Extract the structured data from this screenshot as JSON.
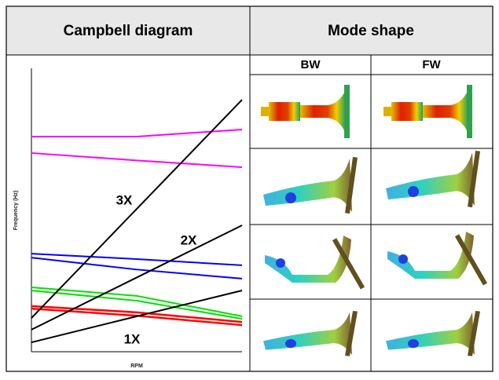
{
  "header": {
    "left": "Campbell diagram",
    "right": "Mode shape"
  },
  "mode_columns": [
    "BW",
    "FW"
  ],
  "chart_data": {
    "type": "line",
    "x_label": "RPM",
    "y_label": "Frequency (Hz)",
    "x": [
      0,
      50,
      100
    ],
    "xlim": [
      0,
      100
    ],
    "ylim": [
      0,
      100
    ],
    "series": [
      {
        "color": "#ff00ff",
        "values": [
          75.9,
          75.9,
          78.4
        ]
      },
      {
        "color": "#ff00ff",
        "values": [
          70.1,
          67.5,
          65.1
        ]
      },
      {
        "color": "#0000ff",
        "values": [
          34.6,
          32.7,
          30.5
        ]
      },
      {
        "color": "#0000ff",
        "values": [
          33.2,
          29.0,
          25.8
        ]
      },
      {
        "color": "#00e000",
        "values": [
          22.7,
          19.7,
          12.5
        ]
      },
      {
        "color": "#00e000",
        "values": [
          21.6,
          18.0,
          11.6
        ]
      },
      {
        "color": "#ff0000",
        "values": [
          16.1,
          13.9,
          10.5
        ]
      },
      {
        "color": "#ff0000",
        "values": [
          15.2,
          12.7,
          9.4
        ]
      },
      {
        "color": "#000000",
        "values": [
          11.9,
          50.4,
          88.9
        ]
      },
      {
        "color": "#000000",
        "values": [
          7.8,
          26.2,
          44.6
        ]
      },
      {
        "color": "#000000",
        "values": [
          3.3,
          12.5,
          21.6
        ]
      }
    ],
    "annotations": [
      "3X",
      "2X",
      "1X"
    ]
  }
}
